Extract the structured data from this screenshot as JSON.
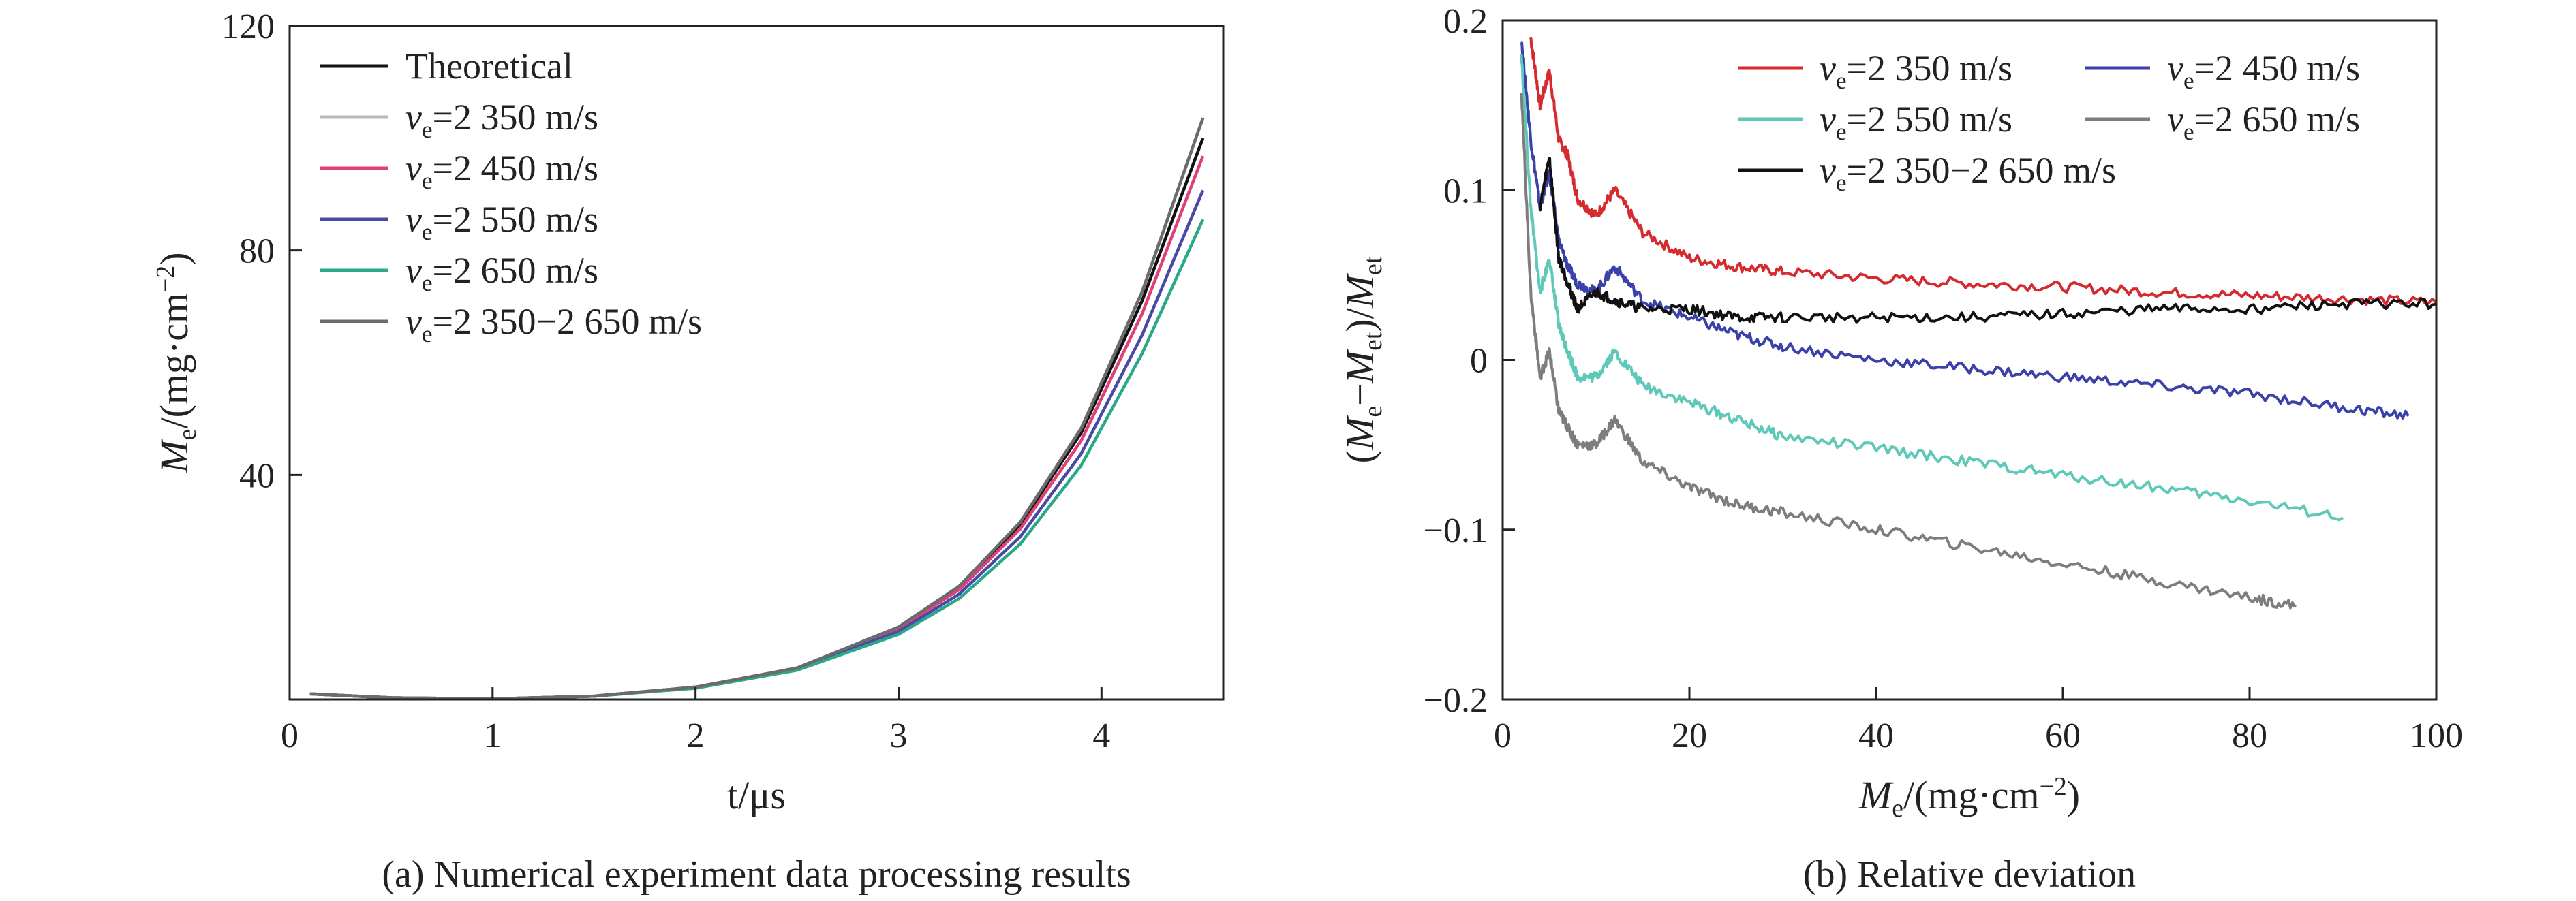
{
  "colors": {
    "theoretical": "#111111",
    "v2350": "#d42a30",
    "v2450": "#3a41a8",
    "v2550": "#5ec8b9",
    "v2650": "#7d7d7d",
    "combined": "#111111",
    "left_v2350": "#b9b9b9",
    "left_v2450": "#e0407a",
    "left_v2550": "#4a4aa6",
    "left_v2650": "#2aa88a",
    "left_combined": "#6b6b6b"
  },
  "chart_data": [
    {
      "type": "line",
      "caption": "(a) Numerical experiment data processing results",
      "xlabel": "t/μs",
      "ylabel": "Me/(mg·cm−2)",
      "xlim": [
        0,
        4.6
      ],
      "ylim": [
        0,
        120
      ],
      "xticks": [
        0,
        1,
        2,
        3,
        4
      ],
      "xtick_labels": [
        "0",
        "1",
        "2",
        "3",
        "4"
      ],
      "yticks": [
        40,
        80,
        120
      ],
      "ytick_labels": [
        "40",
        "80",
        "120"
      ],
      "legend_position": "top-left",
      "legend": [
        {
          "text": "Theoretical",
          "color_key": "theoretical"
        },
        {
          "text": "ve=2 350 m/s",
          "color_key": "left_v2350"
        },
        {
          "text": "ve=2 450 m/s",
          "color_key": "left_v2450"
        },
        {
          "text": "ve=2 550 m/s",
          "color_key": "left_v2550"
        },
        {
          "text": "ve=2 650 m/s",
          "color_key": "left_v2650"
        },
        {
          "text": "ve=2 350−2 650 m/s",
          "color_key": "left_combined"
        }
      ],
      "series": [
        {
          "name": "Theoretical",
          "color_key": "theoretical",
          "x": [
            0.1,
            0.5,
            1.0,
            1.5,
            2.0,
            2.5,
            3.0,
            3.3,
            3.6,
            3.9,
            4.2,
            4.5
          ],
          "y": [
            1.0,
            0.3,
            0.1,
            0.6,
            2.2,
            5.6,
            12.8,
            20.0,
            31.2,
            47.5,
            71.0,
            100.0
          ]
        },
        {
          "name": "ve=2 350 m/s",
          "color_key": "left_v2350",
          "x": [
            0.1,
            0.5,
            1.0,
            1.5,
            2.0,
            2.5,
            3.0,
            3.3,
            3.6,
            3.9,
            4.2,
            4.5
          ],
          "y": [
            1.0,
            0.3,
            0.1,
            0.6,
            2.2,
            5.6,
            12.9,
            20.2,
            31.6,
            48.3,
            72.6,
            103.6
          ]
        },
        {
          "name": "ve=2 450 m/s",
          "color_key": "left_v2450",
          "x": [
            0.1,
            0.5,
            1.0,
            1.5,
            2.0,
            2.5,
            3.0,
            3.3,
            3.6,
            3.9,
            4.2,
            4.5
          ],
          "y": [
            1.0,
            0.3,
            0.1,
            0.6,
            2.2,
            5.6,
            12.6,
            19.6,
            30.4,
            46.1,
            68.7,
            96.8
          ]
        },
        {
          "name": "ve=2 550 m/s",
          "color_key": "left_v2550",
          "x": [
            0.1,
            0.5,
            1.0,
            1.5,
            2.0,
            2.5,
            3.0,
            3.3,
            3.6,
            3.9,
            4.2,
            4.5
          ],
          "y": [
            1.0,
            0.3,
            0.1,
            0.6,
            2.1,
            5.4,
            12.1,
            18.8,
            29.0,
            43.8,
            64.9,
            90.7
          ]
        },
        {
          "name": "ve=2 650 m/s",
          "color_key": "left_v2650",
          "x": [
            0.1,
            0.5,
            1.0,
            1.5,
            2.0,
            2.5,
            3.0,
            3.3,
            3.6,
            3.9,
            4.2,
            4.5
          ],
          "y": [
            1.0,
            0.3,
            0.1,
            0.6,
            2.0,
            5.2,
            11.6,
            18.0,
            27.7,
            41.7,
            61.6,
            85.5
          ]
        },
        {
          "name": "ve=2 350−2 650 m/s",
          "color_key": "left_combined",
          "x": [
            0.1,
            0.5,
            1.0,
            1.5,
            2.0,
            2.5,
            3.0,
            3.3,
            3.6,
            3.9,
            4.2,
            4.5
          ],
          "y": [
            1.0,
            0.3,
            0.1,
            0.6,
            2.2,
            5.6,
            12.9,
            20.2,
            31.6,
            48.3,
            72.6,
            103.6
          ]
        }
      ]
    },
    {
      "type": "line",
      "caption": "(b) Relative deviation",
      "xlabel": "Me/(mg·cm−2)",
      "ylabel": "(Me−Met)/Met",
      "xlim": [
        0,
        100
      ],
      "ylim": [
        -0.2,
        0.2
      ],
      "xticks": [
        0,
        20,
        40,
        60,
        80,
        100
      ],
      "xtick_labels": [
        "0",
        "20",
        "40",
        "60",
        "80",
        "100"
      ],
      "yticks": [
        -0.2,
        -0.1,
        0,
        0.1,
        0.2
      ],
      "ytick_labels": [
        "−0.2",
        "−0.1",
        "0",
        "0.1",
        "0.2"
      ],
      "legend_position": "top-right",
      "legend": [
        {
          "text": "ve=2 350 m/s",
          "color_key": "v2350"
        },
        {
          "text": "ve=2 450 m/s",
          "color_key": "v2450"
        },
        {
          "text": "ve=2 550 m/s",
          "color_key": "v2550"
        },
        {
          "text": "ve=2 650 m/s",
          "color_key": "v2650"
        },
        {
          "text": "ve=2 350−2 650 m/s",
          "color_key": "combined"
        }
      ],
      "series": [
        {
          "name": "ve=2 350 m/s",
          "color_key": "v2350",
          "x": [
            3,
            4,
            5,
            6,
            7,
            8,
            10,
            12,
            15,
            20,
            25,
            30,
            40,
            50,
            60,
            70,
            80,
            90,
            100
          ],
          "y": [
            0.19,
            0.15,
            0.17,
            0.13,
            0.12,
            0.095,
            0.085,
            0.1,
            0.075,
            0.06,
            0.055,
            0.052,
            0.048,
            0.045,
            0.043,
            0.04,
            0.038,
            0.036,
            0.034
          ]
        },
        {
          "name": "ve=2 450 m/s",
          "color_key": "v2450",
          "x": [
            2,
            3,
            4,
            5,
            6,
            7,
            8,
            10,
            12,
            15,
            20,
            25,
            30,
            40,
            50,
            60,
            70,
            80,
            90,
            97
          ],
          "y": [
            0.19,
            0.13,
            0.09,
            0.11,
            0.07,
            0.055,
            0.045,
            0.04,
            0.055,
            0.035,
            0.025,
            0.015,
            0.008,
            0.0,
            -0.005,
            -0.01,
            -0.015,
            -0.02,
            -0.028,
            -0.033
          ]
        },
        {
          "name": "ve=2 550 m/s",
          "color_key": "v2550",
          "x": [
            2,
            3,
            4,
            5,
            6,
            7,
            8,
            10,
            12,
            15,
            20,
            25,
            30,
            40,
            50,
            60,
            70,
            80,
            90
          ],
          "y": [
            0.18,
            0.09,
            0.04,
            0.06,
            0.02,
            0.005,
            -0.01,
            -0.01,
            0.005,
            -0.015,
            -0.025,
            -0.035,
            -0.045,
            -0.052,
            -0.06,
            -0.068,
            -0.075,
            -0.083,
            -0.093
          ]
        },
        {
          "name": "ve=2 650 m/s",
          "color_key": "v2650",
          "x": [
            2,
            3,
            4,
            5,
            6,
            7,
            8,
            10,
            12,
            15,
            20,
            25,
            30,
            40,
            50,
            60,
            70,
            80,
            85
          ],
          "y": [
            0.16,
            0.04,
            -0.01,
            0.005,
            -0.03,
            -0.04,
            -0.05,
            -0.05,
            -0.035,
            -0.06,
            -0.075,
            -0.085,
            -0.09,
            -0.1,
            -0.11,
            -0.12,
            -0.13,
            -0.14,
            -0.145
          ]
        },
        {
          "name": "ve=2 350−2 650 m/s",
          "color_key": "combined",
          "x": [
            4,
            5,
            6,
            7,
            8,
            10,
            12,
            15,
            20,
            25,
            30,
            40,
            50,
            60,
            70,
            80,
            90,
            100
          ],
          "y": [
            0.09,
            0.12,
            0.06,
            0.045,
            0.03,
            0.04,
            0.035,
            0.03,
            0.03,
            0.025,
            0.025,
            0.025,
            0.025,
            0.027,
            0.03,
            0.03,
            0.033,
            0.033
          ]
        }
      ]
    }
  ]
}
